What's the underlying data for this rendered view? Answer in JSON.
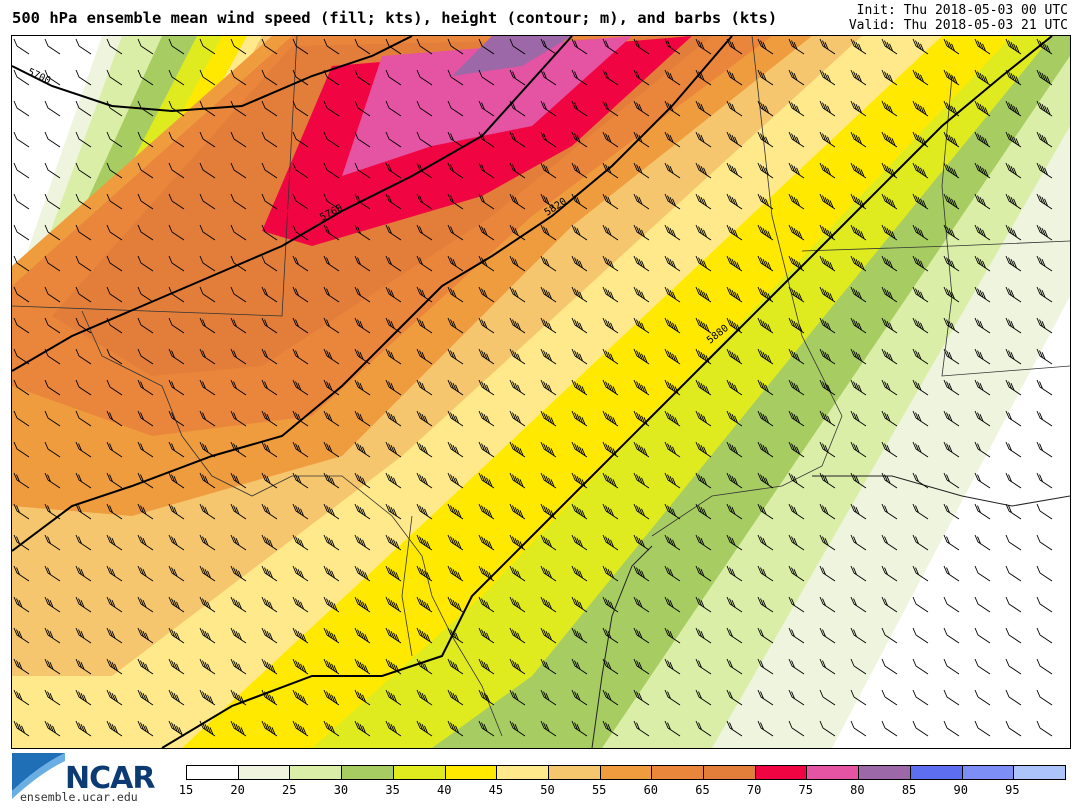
{
  "header": {
    "title": "500 hPa ensemble mean wind speed (fill; kts), height (contour; m), and barbs (kts)",
    "init": "Init: Thu 2018-05-03 00 UTC",
    "valid": "Valid: Thu 2018-05-03 21 UTC"
  },
  "contours": [
    {
      "label": "5700"
    },
    {
      "label": "5760"
    },
    {
      "label": "5820"
    },
    {
      "label": "5880"
    }
  ],
  "colorbar": {
    "ticks": [
      "15",
      "20",
      "25",
      "30",
      "35",
      "40",
      "45",
      "50",
      "55",
      "60",
      "65",
      "70",
      "75",
      "80",
      "85",
      "90",
      "95"
    ],
    "colors": [
      "#ffffff",
      "#eef4dd",
      "#dbeea8",
      "#a7cd62",
      "#dfeb1e",
      "#ffe900",
      "#ffe98a",
      "#f5c66d",
      "#ef9c3e",
      "#e9863b",
      "#e27e3a",
      "#f00542",
      "#e553a3",
      "#9c68a8",
      "#5e6ef0",
      "#7d8ef7",
      "#adc4fb"
    ]
  },
  "logo": {
    "name": "NCAR",
    "url": "ensemble.ucar.edu"
  }
}
